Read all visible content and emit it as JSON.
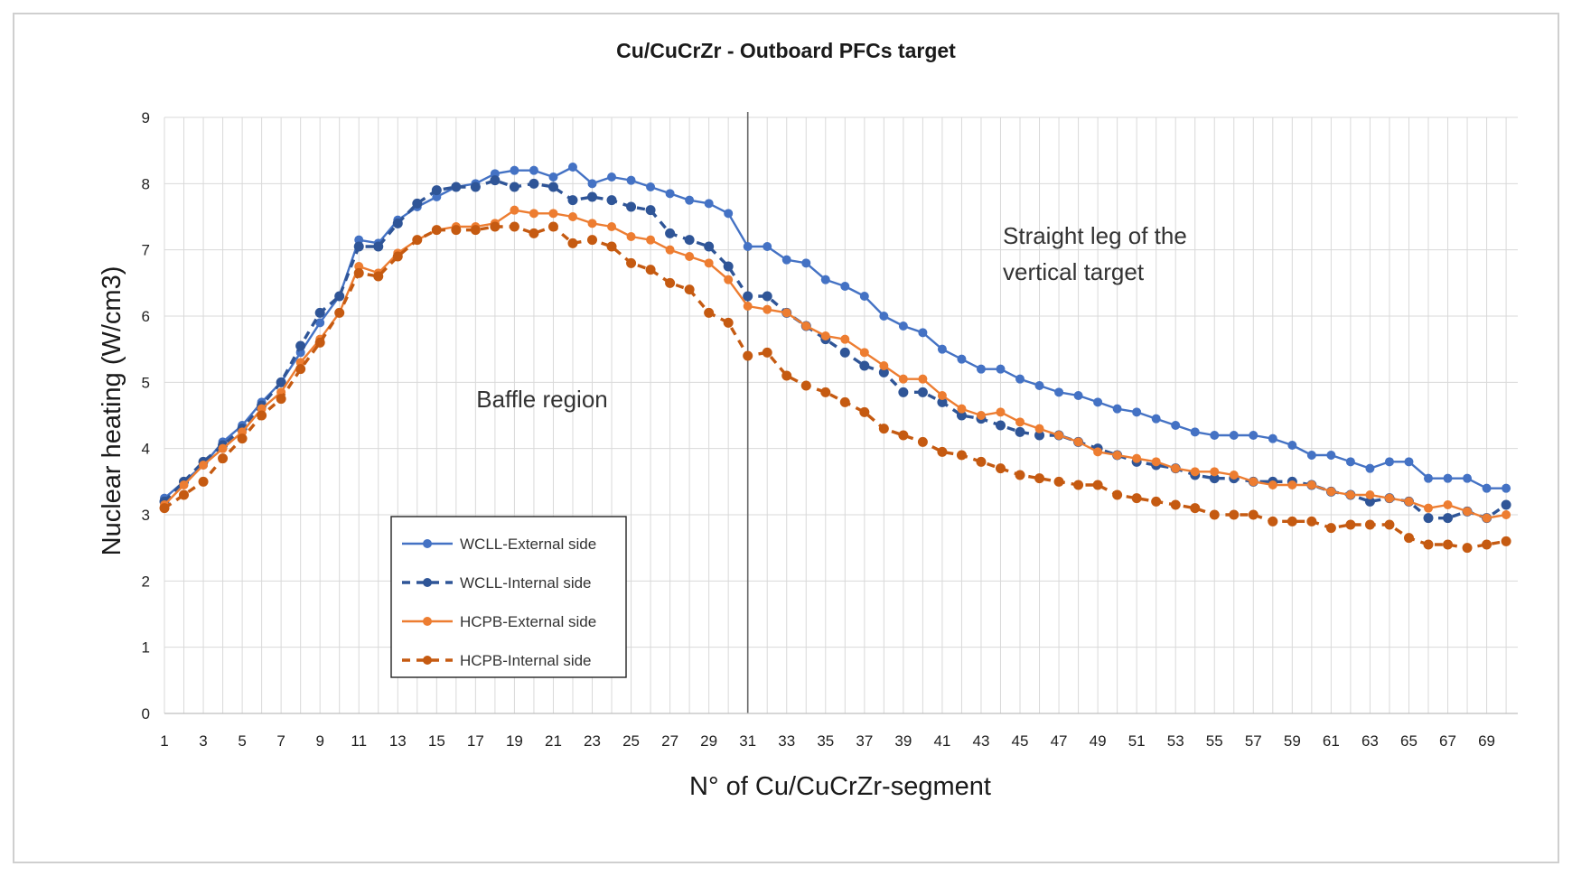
{
  "chart_data": {
    "type": "line",
    "title": "Cu/CuCrZr - Outboard PFCs target",
    "xlabel": "N° of Cu/CuCrZr-segment",
    "ylabel": "Nuclear heating (W/cm3)",
    "ylim": [
      0,
      9
    ],
    "xlim": [
      1,
      70
    ],
    "yticks": [
      "0",
      "1",
      "2",
      "3",
      "4",
      "5",
      "6",
      "7",
      "8",
      "9"
    ],
    "xticks": [
      "1",
      "3",
      "5",
      "7",
      "9",
      "11",
      "13",
      "15",
      "17",
      "19",
      "21",
      "23",
      "25",
      "27",
      "29",
      "31",
      "33",
      "35",
      "37",
      "39",
      "41",
      "43",
      "45",
      "47",
      "49",
      "51",
      "53",
      "55",
      "57",
      "59",
      "61",
      "63",
      "65",
      "67",
      "69"
    ],
    "grid": true,
    "legend_position": "lower-left",
    "divider_x": 31,
    "annotations": {
      "baffle": "Baffle region",
      "straight_line1": "Straight leg of the",
      "straight_line2": "vertical target"
    },
    "series": [
      {
        "name": "WCLL-External side",
        "color": "#4472C4",
        "dash": false,
        "values": [
          3.25,
          3.5,
          3.75,
          4.1,
          4.35,
          4.7,
          5.0,
          5.45,
          5.9,
          6.3,
          7.15,
          7.1,
          7.45,
          7.65,
          7.8,
          7.95,
          8.0,
          8.15,
          8.2,
          8.2,
          8.1,
          8.25,
          8.0,
          8.1,
          8.05,
          7.95,
          7.85,
          7.75,
          7.7,
          7.55,
          7.05,
          7.05,
          6.85,
          6.8,
          6.55,
          6.45,
          6.3,
          6.0,
          5.85,
          5.75,
          5.5,
          5.35,
          5.2,
          5.2,
          5.05,
          4.95,
          4.85,
          4.8,
          4.7,
          4.6,
          4.55,
          4.45,
          4.35,
          4.25,
          4.2,
          4.2,
          4.2,
          4.15,
          4.05,
          3.9,
          3.9,
          3.8,
          3.7,
          3.8,
          3.8,
          3.55,
          3.55,
          3.55,
          3.4,
          3.4
        ]
      },
      {
        "name": "WCLL-Internal side",
        "color": "#2F5597",
        "dash": true,
        "values": [
          3.2,
          3.5,
          3.8,
          4.05,
          4.3,
          4.65,
          5.0,
          5.55,
          6.05,
          6.3,
          7.05,
          7.05,
          7.4,
          7.7,
          7.9,
          7.95,
          7.95,
          8.05,
          7.95,
          8.0,
          7.95,
          7.75,
          7.8,
          7.75,
          7.65,
          7.6,
          7.25,
          7.15,
          7.05,
          6.75,
          6.3,
          6.3,
          6.05,
          5.85,
          5.65,
          5.45,
          5.25,
          5.15,
          4.85,
          4.85,
          4.7,
          4.5,
          4.45,
          4.35,
          4.25,
          4.2,
          4.2,
          4.1,
          4.0,
          3.9,
          3.8,
          3.75,
          3.7,
          3.6,
          3.55,
          3.55,
          3.5,
          3.5,
          3.5,
          3.45,
          3.35,
          3.3,
          3.2,
          3.25,
          3.2,
          2.95,
          2.95,
          3.05,
          2.95,
          3.15
        ]
      },
      {
        "name": "HCPB-External side",
        "color": "#ED7D31",
        "dash": false,
        "values": [
          3.15,
          3.45,
          3.75,
          4.0,
          4.25,
          4.6,
          4.85,
          5.3,
          5.65,
          6.05,
          6.75,
          6.65,
          6.95,
          7.15,
          7.3,
          7.35,
          7.35,
          7.4,
          7.6,
          7.55,
          7.55,
          7.5,
          7.4,
          7.35,
          7.2,
          7.15,
          7.0,
          6.9,
          6.8,
          6.55,
          6.15,
          6.1,
          6.05,
          5.85,
          5.7,
          5.65,
          5.45,
          5.25,
          5.05,
          5.05,
          4.8,
          4.6,
          4.5,
          4.55,
          4.4,
          4.3,
          4.2,
          4.1,
          3.95,
          3.9,
          3.85,
          3.8,
          3.7,
          3.65,
          3.65,
          3.6,
          3.5,
          3.45,
          3.45,
          3.45,
          3.35,
          3.3,
          3.3,
          3.25,
          3.2,
          3.1,
          3.15,
          3.05,
          2.95,
          3.0
        ]
      },
      {
        "name": "HCPB-Internal side",
        "color": "#C55A11",
        "dash": true,
        "values": [
          3.1,
          3.3,
          3.5,
          3.85,
          4.15,
          4.5,
          4.75,
          5.2,
          5.6,
          6.05,
          6.65,
          6.6,
          6.9,
          7.15,
          7.3,
          7.3,
          7.3,
          7.35,
          7.35,
          7.25,
          7.35,
          7.1,
          7.15,
          7.05,
          6.8,
          6.7,
          6.5,
          6.4,
          6.05,
          5.9,
          5.4,
          5.45,
          5.1,
          4.95,
          4.85,
          4.7,
          4.55,
          4.3,
          4.2,
          4.1,
          3.95,
          3.9,
          3.8,
          3.7,
          3.6,
          3.55,
          3.5,
          3.45,
          3.45,
          3.3,
          3.25,
          3.2,
          3.15,
          3.1,
          3.0,
          3.0,
          3.0,
          2.9,
          2.9,
          2.9,
          2.8,
          2.85,
          2.85,
          2.85,
          2.65,
          2.55,
          2.55,
          2.5,
          2.55,
          2.6
        ]
      }
    ]
  }
}
